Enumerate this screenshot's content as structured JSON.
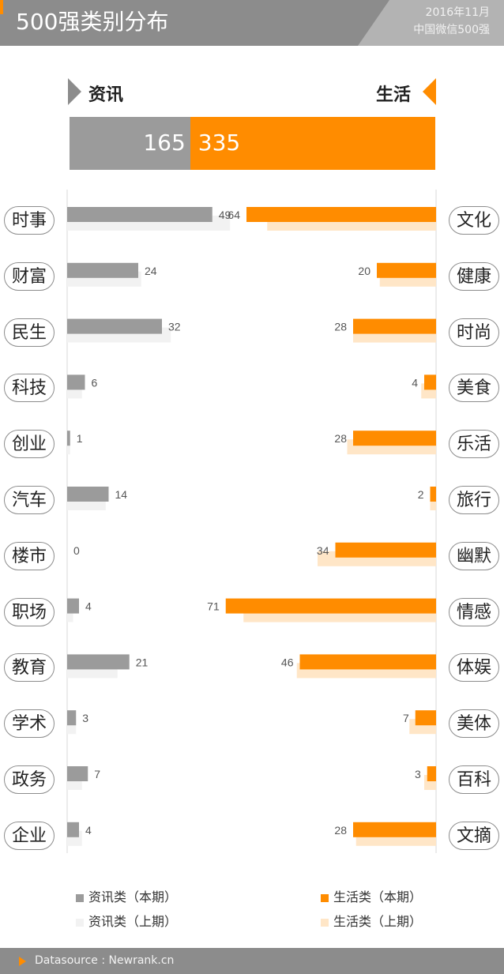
{
  "header": {
    "title": "500强类别分布",
    "date": "2016年11月",
    "subtitle": "中国微信500强"
  },
  "sides": {
    "left": "资讯",
    "right": "生活"
  },
  "totals": {
    "left": 165,
    "right": 335,
    "left_text": "165",
    "right_text": "335"
  },
  "colors": {
    "left_current": "#9b9b9b",
    "left_previous": "#f2f2f2",
    "right_current": "#ff8c00",
    "right_previous": "#ffe6c7"
  },
  "chart_data": {
    "type": "bar",
    "left": {
      "categories": [
        "时事",
        "财富",
        "民生",
        "科技",
        "创业",
        "汽车",
        "楼市",
        "职场",
        "教育",
        "学术",
        "政务",
        "企业"
      ],
      "current": [
        49,
        24,
        32,
        6,
        1,
        14,
        0,
        4,
        21,
        3,
        7,
        4
      ],
      "previous": [
        55,
        25,
        35,
        5,
        1,
        13,
        0,
        2,
        17,
        3,
        5,
        5
      ]
    },
    "right": {
      "categories": [
        "文化",
        "健康",
        "时尚",
        "美食",
        "乐活",
        "旅行",
        "幽默",
        "情感",
        "体娱",
        "美体",
        "百科",
        "文摘"
      ],
      "current": [
        64,
        20,
        28,
        4,
        28,
        2,
        34,
        71,
        46,
        7,
        3,
        28
      ],
      "previous": [
        57,
        19,
        28,
        5,
        30,
        2,
        40,
        65,
        47,
        9,
        4,
        27
      ]
    },
    "series": [
      {
        "name": "资讯类（本期）"
      },
      {
        "name": "资讯类（上期）"
      },
      {
        "name": "生活类（本期）"
      },
      {
        "name": "生活类（上期）"
      }
    ]
  },
  "legend": {
    "left_current": "资讯类（本期）",
    "left_previous": "资讯类（上期）",
    "right_current": "生活类（本期）",
    "right_previous": "生活类（上期）"
  },
  "footer": {
    "text": "Datasource : Newrank.cn"
  }
}
